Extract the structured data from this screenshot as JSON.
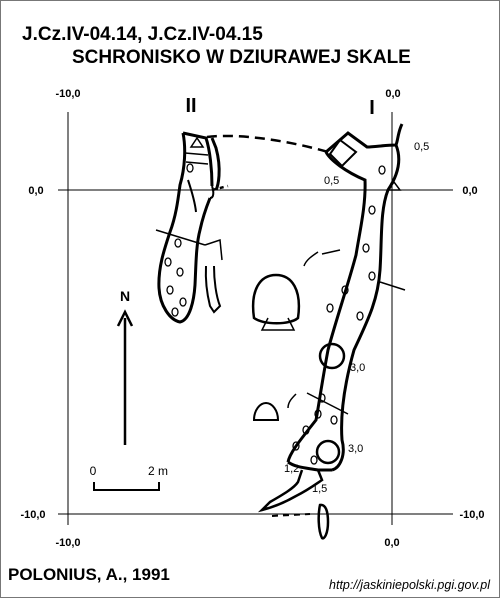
{
  "header": {
    "ids": "J.Cz.IV-04.14, J.Cz.IV-04.15",
    "name": "SCHRONISKO W DZIURAWEJ SKALE"
  },
  "coords": {
    "x_minus10": "-10,0",
    "x_0": "0,0",
    "y_0": "0,0",
    "y_minus10": "-10,0"
  },
  "labels": {
    "entrance_ii": "II",
    "entrance_i": "I",
    "north": "N",
    "scale_start": "0",
    "scale_end": "2 m",
    "h_05": "0,5",
    "h_30": "3,0",
    "h_12": "1,2",
    "h_15": "1,5"
  },
  "footer": {
    "author": "POLONIUS, A., 1991",
    "source": "http://jaskiniepolski.pgi.gov.pl"
  }
}
